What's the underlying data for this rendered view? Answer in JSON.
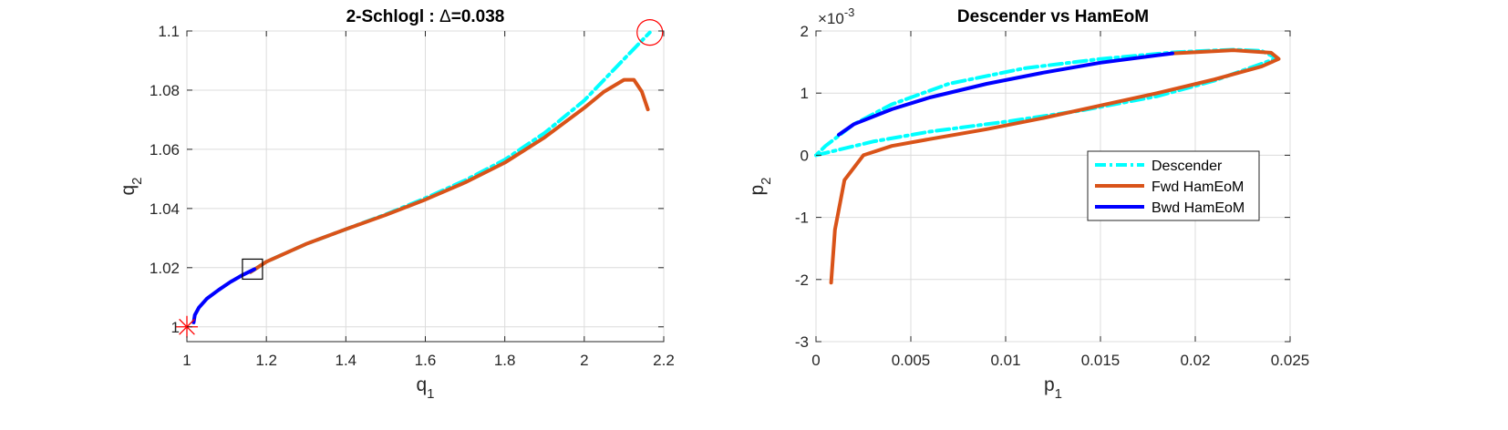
{
  "chart_data": [
    {
      "type": "line",
      "title": "2-Schlogl : ",
      "title_delta_symbol": "Δ",
      "title_suffix": "=0.038",
      "xlabel": "q",
      "xlabel_sub": "1",
      "ylabel": "q",
      "ylabel_sub": "2",
      "xlim": [
        1,
        2.2
      ],
      "ylim": [
        0.995,
        1.1
      ],
      "xticks": [
        1,
        1.2,
        1.4,
        1.6,
        1.8,
        2,
        2.2
      ],
      "xtick_labels": [
        "1",
        "1.2",
        "1.4",
        "1.6",
        "1.8",
        "2",
        "2.2"
      ],
      "yticks": [
        1,
        1.02,
        1.04,
        1.06,
        1.08,
        1.1
      ],
      "ytick_labels": [
        "1",
        "1.02",
        "1.04",
        "1.06",
        "1.08",
        "1.1"
      ],
      "grid": true,
      "series": [
        {
          "color": "#00ffff",
          "style": "dashdot",
          "x": [
            1.16,
            1.2,
            1.3,
            1.4,
            1.5,
            1.6,
            1.7,
            1.8,
            1.9,
            2.0,
            2.05,
            2.1,
            2.165
          ],
          "y": [
            1.0185,
            1.022,
            1.028,
            1.033,
            1.038,
            1.0435,
            1.0495,
            1.0565,
            1.0655,
            1.0765,
            1.0835,
            1.0905,
            1.0995
          ]
        },
        {
          "color": "#d95319",
          "style": "solid",
          "x": [
            1.16,
            1.2,
            1.3,
            1.4,
            1.5,
            1.6,
            1.7,
            1.8,
            1.9,
            2.0,
            2.05,
            2.1,
            2.125,
            2.145,
            2.16
          ],
          "y": [
            1.0185,
            1.022,
            1.028,
            1.033,
            1.0378,
            1.043,
            1.0488,
            1.0555,
            1.064,
            1.074,
            1.0795,
            1.0835,
            1.0835,
            1.0795,
            1.0735
          ]
        },
        {
          "color": "#0000ff",
          "style": "solid",
          "x": [
            1.017,
            1.02,
            1.03,
            1.05,
            1.08,
            1.11,
            1.14,
            1.17
          ],
          "y": [
            1.0015,
            1.004,
            1.0065,
            1.0095,
            1.0125,
            1.0152,
            1.0175,
            1.0195
          ]
        }
      ],
      "markers": [
        {
          "type": "star",
          "x": 1.0,
          "y": 1.0,
          "color": "#ff0000"
        },
        {
          "type": "square",
          "x": 1.165,
          "y": 1.0195,
          "color": "#000000"
        },
        {
          "type": "circle",
          "x": 2.165,
          "y": 1.0995,
          "color": "#ff0000"
        }
      ]
    },
    {
      "type": "line",
      "title": "Descender vs HamEoM",
      "xlabel": "p",
      "xlabel_sub": "1",
      "ylabel": "p",
      "ylabel_sub": "2",
      "y_exponent_prefix": "×10",
      "y_exponent": "-3",
      "xlim": [
        0,
        0.025
      ],
      "ylim": [
        -3,
        2
      ],
      "xticks": [
        0,
        0.005,
        0.01,
        0.015,
        0.02,
        0.025
      ],
      "xtick_labels": [
        "0",
        "0.005",
        "0.01",
        "0.015",
        "0.02",
        "0.025"
      ],
      "yticks": [
        -3,
        -2,
        -1,
        0,
        1,
        2
      ],
      "ytick_labels": [
        "-3",
        "-2",
        "-1",
        "0",
        "1",
        "2"
      ],
      "grid": true,
      "legend_position": "center-right",
      "series": [
        {
          "name": "Descender",
          "color": "#00ffff",
          "style": "dashdot",
          "x": [
            0.0,
            0.003,
            0.006,
            0.01,
            0.014,
            0.018,
            0.021,
            0.023,
            0.0243,
            0.0235,
            0.022,
            0.019,
            0.015,
            0.011,
            0.007,
            0.004,
            0.002,
            0.0005,
            0.0
          ],
          "y": [
            0.0,
            0.22,
            0.38,
            0.54,
            0.72,
            0.95,
            1.2,
            1.42,
            1.56,
            1.68,
            1.7,
            1.66,
            1.55,
            1.4,
            1.15,
            0.82,
            0.5,
            0.15,
            0.0
          ]
        },
        {
          "name": "Fwd HamEoM",
          "color": "#d95319",
          "style": "solid",
          "x": [
            0.0008,
            0.001,
            0.0015,
            0.0025,
            0.004,
            0.006,
            0.009,
            0.012,
            0.015,
            0.018,
            0.021,
            0.0235,
            0.0244,
            0.024,
            0.022,
            0.0188
          ],
          "y": [
            -2.05,
            -1.2,
            -0.4,
            0.0,
            0.15,
            0.26,
            0.42,
            0.6,
            0.8,
            1.0,
            1.22,
            1.43,
            1.55,
            1.65,
            1.69,
            1.64
          ]
        },
        {
          "name": "Bwd HamEoM",
          "color": "#0000ff",
          "style": "solid",
          "x": [
            0.0012,
            0.002,
            0.004,
            0.006,
            0.009,
            0.012,
            0.015,
            0.0188
          ],
          "y": [
            0.33,
            0.5,
            0.74,
            0.93,
            1.15,
            1.33,
            1.49,
            1.64
          ]
        }
      ]
    }
  ]
}
